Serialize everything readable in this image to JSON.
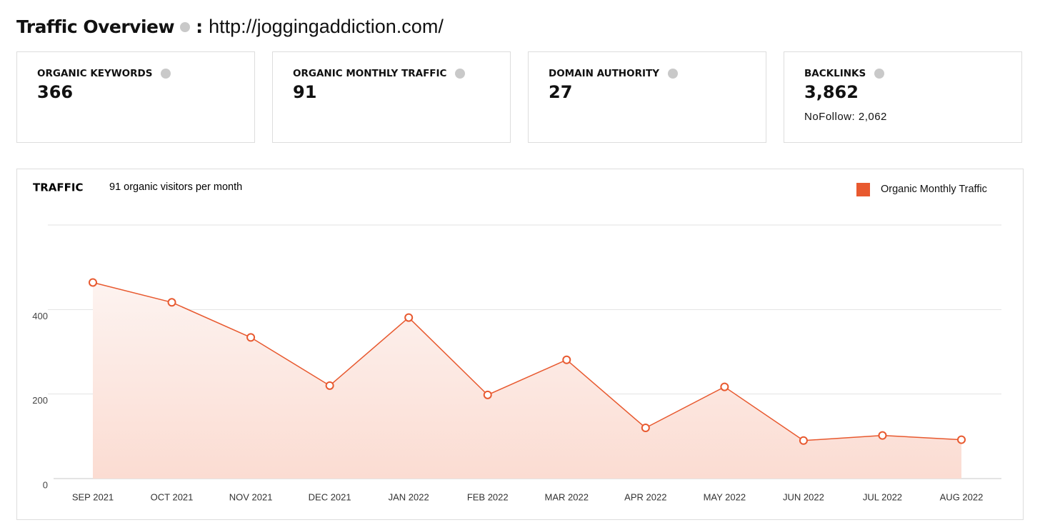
{
  "header": {
    "title": "Traffic Overview",
    "separator": ":",
    "url": "http://joggingaddiction.com/"
  },
  "cards": [
    {
      "label": "ORGANIC KEYWORDS",
      "value": "366"
    },
    {
      "label": "ORGANIC MONTHLY TRAFFIC",
      "value": "91"
    },
    {
      "label": "DOMAIN AUTHORITY",
      "value": "27"
    },
    {
      "label": "BACKLINKS",
      "value": "3,862",
      "note": "NoFollow: 2,062"
    }
  ],
  "chart_data": {
    "type": "line",
    "title": "TRAFFIC",
    "subtitle": "91 organic visitors per month",
    "categories": [
      "SEP 2021",
      "OCT 2021",
      "NOV 2021",
      "DEC 2021",
      "JAN 2022",
      "FEB 2022",
      "MAR 2022",
      "APR 2022",
      "MAY 2022",
      "JUN 2022",
      "JUL 2022",
      "AUG 2022"
    ],
    "series": [
      {
        "name": "Organic Monthly Traffic",
        "color": "#e8592f",
        "values": [
          464,
          417,
          334,
          220,
          381,
          198,
          281,
          120,
          217,
          90,
          102,
          92
        ]
      }
    ],
    "ylim": [
      0,
      600
    ],
    "yticks": [
      0,
      200,
      400
    ],
    "grid": true,
    "legend": "top-right",
    "area": true
  }
}
